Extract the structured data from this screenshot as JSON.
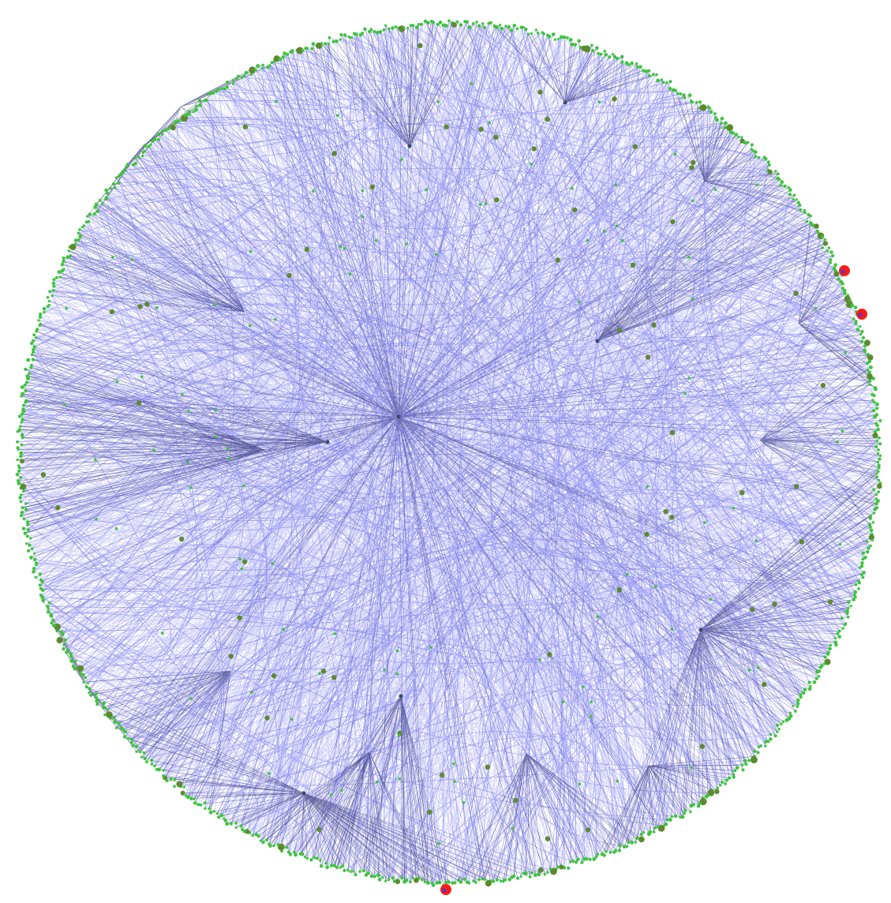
{
  "diagram": {
    "title": "",
    "type": "radial network graph with curved bundled edges",
    "colors": {
      "background": "#ffffff",
      "edge": "#2a2ae8",
      "node_peripheral": "#3cc43c",
      "node_mid": "#5d8a2e",
      "node_hub_highlight": "#ff1a1a",
      "hub_inner": "#4040c8"
    },
    "nodes": {
      "outer_ring_count": 900,
      "inner_count": 170,
      "hub_count": 3
    }
  }
}
